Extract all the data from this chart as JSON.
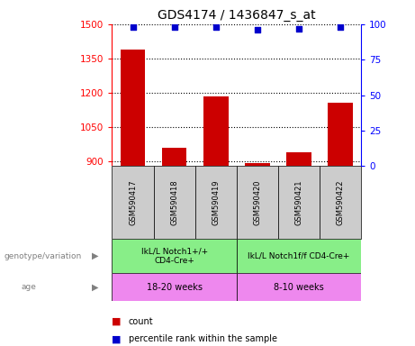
{
  "title": "GDS4174 / 1436847_s_at",
  "samples": [
    "GSM590417",
    "GSM590418",
    "GSM590419",
    "GSM590420",
    "GSM590421",
    "GSM590422"
  ],
  "counts": [
    1390,
    960,
    1185,
    895,
    940,
    1155
  ],
  "percentile_ranks": [
    98,
    98,
    98,
    96,
    97,
    98
  ],
  "ylim_left": [
    880,
    1500
  ],
  "ylim_right": [
    0,
    100
  ],
  "yticks_left": [
    900,
    1050,
    1200,
    1350,
    1500
  ],
  "yticks_right": [
    0,
    25,
    50,
    75,
    100
  ],
  "bar_color": "#cc0000",
  "dot_color": "#0000cc",
  "genotype_groups": [
    {
      "label": "IkL/L Notch1+/+\nCD4-Cre+",
      "start": 0,
      "end": 3,
      "color": "#88ee88"
    },
    {
      "label": "IkL/L Notch1f/f CD4-Cre+",
      "start": 3,
      "end": 6,
      "color": "#88ee88"
    }
  ],
  "age_groups": [
    {
      "label": "18-20 weeks",
      "start": 0,
      "end": 3,
      "color": "#ee88ee"
    },
    {
      "label": "8-10 weeks",
      "start": 3,
      "end": 6,
      "color": "#ee88ee"
    }
  ],
  "legend_count_label": "count",
  "legend_pct_label": "percentile rank within the sample",
  "xlabel_label": "genotype/variation",
  "age_label": "age",
  "sample_bg_color": "#cccccc",
  "title_fontsize": 10,
  "tick_fontsize": 7.5
}
